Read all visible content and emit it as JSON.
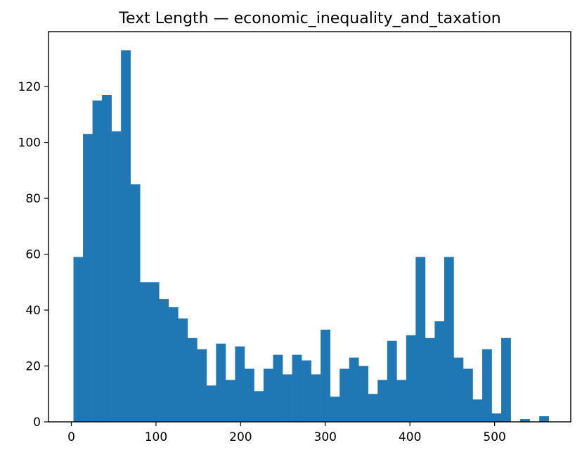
{
  "chart_data": {
    "type": "bar",
    "title": "Text Length — economic_inequality_and_taxation",
    "xlabel": "",
    "ylabel": "",
    "xlim": [
      -27,
      590
    ],
    "ylim": [
      0,
      139.65
    ],
    "xticks": [
      0,
      100,
      200,
      300,
      400,
      500
    ],
    "yticks": [
      0,
      20,
      40,
      60,
      80,
      100,
      120
    ],
    "grid": false,
    "bar_color": "#1f77b4",
    "bins": {
      "start": 2.5,
      "width": 11.23,
      "counts": [
        59,
        103,
        115,
        117,
        104,
        133,
        85,
        50,
        50,
        44,
        41,
        37,
        30,
        26,
        13,
        28,
        15,
        27,
        19,
        11,
        19,
        24,
        17,
        24,
        22,
        17,
        33,
        9,
        19,
        23,
        20,
        10,
        15,
        29,
        15,
        31,
        59,
        30,
        36,
        59,
        23,
        19,
        8,
        26,
        3,
        30,
        0,
        1,
        0,
        2
      ]
    }
  }
}
